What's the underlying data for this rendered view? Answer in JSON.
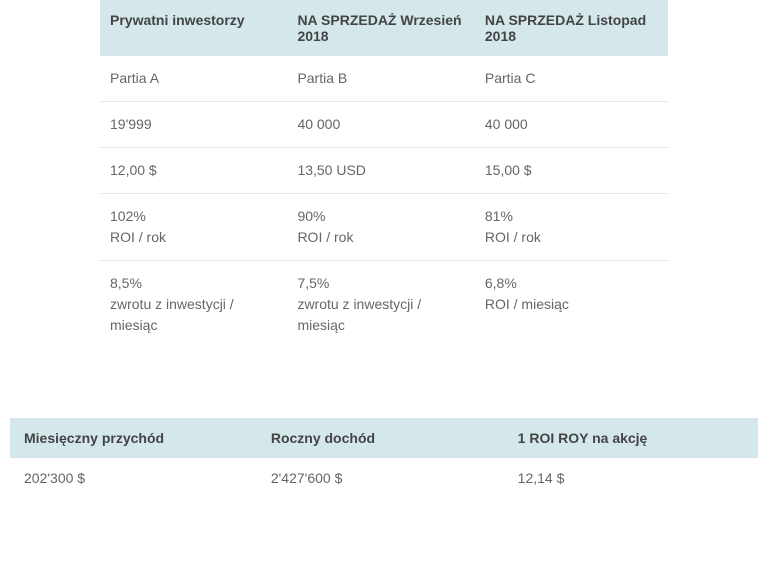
{
  "topTable": {
    "headers": {
      "c1": "Prywatni inwestorzy",
      "c2": "NA SPRZEDAŻ Wrzesień 2018",
      "c3": "NA SPRZEDAŻ Listopad 2018"
    },
    "rows": [
      {
        "c1": "Partia A",
        "c2": "Partia B",
        "c3": "Partia C"
      },
      {
        "c1": "19'999",
        "c2": "40 000",
        "c3": "40 000"
      },
      {
        "c1": "12,00 $",
        "c2": "13,50 USD",
        "c3": "15,00 $"
      },
      {
        "c1": "102%\nROI / rok",
        "c2": "90%\nROI / rok",
        "c3": "81%\nROI / rok"
      },
      {
        "c1": "8,5%\nzwrotu z inwestycji / miesiąc",
        "c2": "7,5%\nzwrotu z inwestycji / miesiąc",
        "c3": "6,8%\nROI / miesiąc"
      }
    ]
  },
  "bottomTable": {
    "headers": {
      "c1": "Miesięczny przychód",
      "c2": "Roczny dochód",
      "c3": "1 ROI ROY na akcję"
    },
    "row": {
      "c1": "202'300 $",
      "c2": "2'427'600 $",
      "c3": "12,14 $"
    }
  },
  "colors": {
    "headerBg": "#d4e8ec",
    "rowBorder": "#e8e8e8",
    "textHeader": "#444444",
    "textBody": "#666666",
    "background": "#ffffff"
  }
}
